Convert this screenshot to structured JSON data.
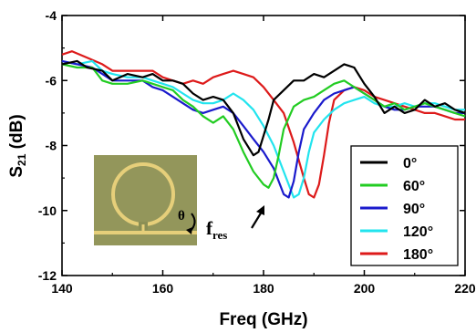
{
  "chart_data": {
    "type": "line",
    "xlabel": "Freq (GHz)",
    "ylabel_main": "S",
    "ylabel_sub": "21",
    "ylabel_unit": " (dB)",
    "xlim": [
      140,
      220
    ],
    "ylim": [
      -12,
      -4
    ],
    "xticks": [
      140,
      160,
      180,
      200,
      220
    ],
    "yticks": [
      -12,
      -10,
      -8,
      -6,
      -4
    ],
    "grid": false,
    "legend_position": "right",
    "annotations": {
      "theta": "θ",
      "fres_main": "f",
      "fres_sub": "res"
    },
    "inset": {
      "description_icon": "ring-resonator-photo-icon"
    },
    "series": [
      {
        "name": "0°",
        "color": "#000000",
        "points": [
          [
            140,
            -5.5
          ],
          [
            143,
            -5.4
          ],
          [
            145,
            -5.6
          ],
          [
            148,
            -5.7
          ],
          [
            150,
            -6.0
          ],
          [
            153,
            -5.8
          ],
          [
            156,
            -5.9
          ],
          [
            158,
            -5.8
          ],
          [
            160,
            -6.0
          ],
          [
            162,
            -6.0
          ],
          [
            164,
            -6.1
          ],
          [
            166,
            -6.4
          ],
          [
            168,
            -6.6
          ],
          [
            170,
            -6.5
          ],
          [
            172,
            -6.6
          ],
          [
            174,
            -7.0
          ],
          [
            176,
            -7.8
          ],
          [
            178,
            -8.3
          ],
          [
            179,
            -8.2
          ],
          [
            180,
            -7.7
          ],
          [
            181,
            -7.2
          ],
          [
            182,
            -6.6
          ],
          [
            184,
            -6.3
          ],
          [
            186,
            -6.0
          ],
          [
            188,
            -6.0
          ],
          [
            190,
            -5.8
          ],
          [
            192,
            -5.9
          ],
          [
            194,
            -5.7
          ],
          [
            196,
            -5.5
          ],
          [
            198,
            -5.6
          ],
          [
            200,
            -6.1
          ],
          [
            202,
            -6.5
          ],
          [
            204,
            -7.0
          ],
          [
            206,
            -6.8
          ],
          [
            208,
            -7.0
          ],
          [
            210,
            -6.9
          ],
          [
            212,
            -6.6
          ],
          [
            214,
            -6.8
          ],
          [
            216,
            -6.7
          ],
          [
            218,
            -6.9
          ],
          [
            220,
            -7.0
          ]
        ]
      },
      {
        "name": "60°",
        "color": "#22cc22",
        "points": [
          [
            140,
            -5.5
          ],
          [
            143,
            -5.6
          ],
          [
            146,
            -5.6
          ],
          [
            148,
            -6.0
          ],
          [
            150,
            -6.1
          ],
          [
            153,
            -6.1
          ],
          [
            156,
            -6.0
          ],
          [
            158,
            -6.1
          ],
          [
            160,
            -6.2
          ],
          [
            162,
            -6.3
          ],
          [
            164,
            -6.6
          ],
          [
            166,
            -6.8
          ],
          [
            168,
            -7.1
          ],
          [
            170,
            -7.3
          ],
          [
            172,
            -7.1
          ],
          [
            174,
            -7.5
          ],
          [
            176,
            -8.2
          ],
          [
            178,
            -8.8
          ],
          [
            180,
            -9.2
          ],
          [
            181,
            -9.3
          ],
          [
            182,
            -9.0
          ],
          [
            183,
            -8.3
          ],
          [
            184,
            -7.5
          ],
          [
            186,
            -6.8
          ],
          [
            188,
            -6.6
          ],
          [
            190,
            -6.5
          ],
          [
            192,
            -6.3
          ],
          [
            194,
            -6.1
          ],
          [
            196,
            -6.0
          ],
          [
            198,
            -6.2
          ],
          [
            200,
            -6.4
          ],
          [
            202,
            -6.6
          ],
          [
            204,
            -6.8
          ],
          [
            206,
            -6.7
          ],
          [
            208,
            -6.9
          ],
          [
            210,
            -6.8
          ],
          [
            212,
            -6.7
          ],
          [
            214,
            -6.8
          ],
          [
            216,
            -6.9
          ],
          [
            218,
            -7.0
          ],
          [
            220,
            -7.1
          ]
        ]
      },
      {
        "name": "90°",
        "color": "#1a1acc",
        "points": [
          [
            140,
            -5.4
          ],
          [
            143,
            -5.5
          ],
          [
            146,
            -5.6
          ],
          [
            148,
            -5.8
          ],
          [
            150,
            -6.0
          ],
          [
            153,
            -6.0
          ],
          [
            156,
            -6.0
          ],
          [
            158,
            -6.2
          ],
          [
            160,
            -6.3
          ],
          [
            162,
            -6.5
          ],
          [
            164,
            -6.7
          ],
          [
            166,
            -6.9
          ],
          [
            168,
            -7.0
          ],
          [
            170,
            -6.9
          ],
          [
            172,
            -6.8
          ],
          [
            174,
            -7.0
          ],
          [
            176,
            -7.4
          ],
          [
            178,
            -7.8
          ],
          [
            180,
            -8.2
          ],
          [
            182,
            -8.7
          ],
          [
            184,
            -9.5
          ],
          [
            185,
            -9.6
          ],
          [
            186,
            -9.1
          ],
          [
            187,
            -8.2
          ],
          [
            188,
            -7.5
          ],
          [
            190,
            -7.0
          ],
          [
            192,
            -6.6
          ],
          [
            194,
            -6.4
          ],
          [
            196,
            -6.3
          ],
          [
            198,
            -6.2
          ],
          [
            200,
            -6.4
          ],
          [
            202,
            -6.6
          ],
          [
            204,
            -6.8
          ],
          [
            206,
            -6.9
          ],
          [
            208,
            -6.9
          ],
          [
            210,
            -6.8
          ],
          [
            212,
            -6.8
          ],
          [
            214,
            -6.8
          ],
          [
            216,
            -6.9
          ],
          [
            218,
            -7.0
          ],
          [
            220,
            -7.0
          ]
        ]
      },
      {
        "name": "120°",
        "color": "#22e4ee",
        "points": [
          [
            140,
            -5.4
          ],
          [
            143,
            -5.5
          ],
          [
            146,
            -5.4
          ],
          [
            148,
            -5.7
          ],
          [
            150,
            -5.8
          ],
          [
            153,
            -5.9
          ],
          [
            156,
            -5.9
          ],
          [
            158,
            -6.0
          ],
          [
            160,
            -6.1
          ],
          [
            162,
            -6.2
          ],
          [
            164,
            -6.4
          ],
          [
            166,
            -6.6
          ],
          [
            168,
            -6.7
          ],
          [
            170,
            -6.7
          ],
          [
            172,
            -6.6
          ],
          [
            174,
            -6.4
          ],
          [
            176,
            -6.6
          ],
          [
            178,
            -6.9
          ],
          [
            180,
            -7.4
          ],
          [
            182,
            -8.0
          ],
          [
            184,
            -8.8
          ],
          [
            186,
            -9.6
          ],
          [
            187,
            -9.5
          ],
          [
            188,
            -9.0
          ],
          [
            189,
            -8.2
          ],
          [
            190,
            -7.6
          ],
          [
            192,
            -7.2
          ],
          [
            194,
            -6.9
          ],
          [
            196,
            -6.7
          ],
          [
            198,
            -6.6
          ],
          [
            200,
            -6.5
          ],
          [
            202,
            -6.7
          ],
          [
            204,
            -6.8
          ],
          [
            206,
            -6.8
          ],
          [
            208,
            -6.7
          ],
          [
            210,
            -6.8
          ],
          [
            212,
            -6.7
          ],
          [
            214,
            -6.7
          ],
          [
            216,
            -6.8
          ],
          [
            218,
            -6.9
          ],
          [
            220,
            -6.9
          ]
        ]
      },
      {
        "name": "180°",
        "color": "#dd1a1a",
        "points": [
          [
            140,
            -5.2
          ],
          [
            142,
            -5.1
          ],
          [
            145,
            -5.3
          ],
          [
            148,
            -5.5
          ],
          [
            150,
            -5.7
          ],
          [
            153,
            -5.7
          ],
          [
            156,
            -5.7
          ],
          [
            158,
            -5.7
          ],
          [
            160,
            -5.9
          ],
          [
            162,
            -6.0
          ],
          [
            164,
            -6.1
          ],
          [
            166,
            -6.0
          ],
          [
            168,
            -6.1
          ],
          [
            170,
            -5.9
          ],
          [
            172,
            -5.8
          ],
          [
            174,
            -5.7
          ],
          [
            176,
            -5.8
          ],
          [
            178,
            -5.9
          ],
          [
            180,
            -6.2
          ],
          [
            182,
            -6.6
          ],
          [
            184,
            -7.0
          ],
          [
            186,
            -7.9
          ],
          [
            188,
            -9.0
          ],
          [
            189,
            -9.5
          ],
          [
            190,
            -9.6
          ],
          [
            191,
            -9.2
          ],
          [
            192,
            -8.3
          ],
          [
            193,
            -7.3
          ],
          [
            194,
            -6.6
          ],
          [
            196,
            -6.3
          ],
          [
            198,
            -6.2
          ],
          [
            200,
            -6.3
          ],
          [
            202,
            -6.5
          ],
          [
            204,
            -6.6
          ],
          [
            206,
            -6.7
          ],
          [
            208,
            -6.8
          ],
          [
            210,
            -6.9
          ],
          [
            212,
            -7.0
          ],
          [
            214,
            -7.0
          ],
          [
            216,
            -7.1
          ],
          [
            218,
            -7.2
          ],
          [
            220,
            -7.2
          ]
        ]
      }
    ]
  }
}
